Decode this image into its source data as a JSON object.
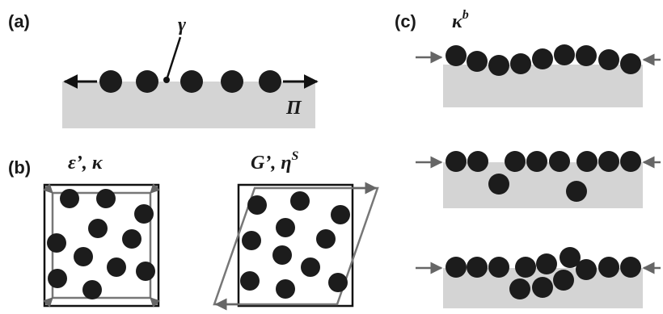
{
  "panels": {
    "a": {
      "label": "(a)",
      "gamma": "γ",
      "pi": "Π"
    },
    "b": {
      "label": "(b)",
      "left_title": "ε’, κ",
      "right_title_main": "G’, η",
      "right_title_sup": "S"
    },
    "c": {
      "label": "(c)",
      "title_main": "κ",
      "title_sup": "b"
    }
  },
  "colors": {
    "substrate": "#d4d4d4",
    "particle": "#1c1c1c",
    "frame": "#111111",
    "deformed_frame": "#777777",
    "arrow_gray": "#666666"
  }
}
